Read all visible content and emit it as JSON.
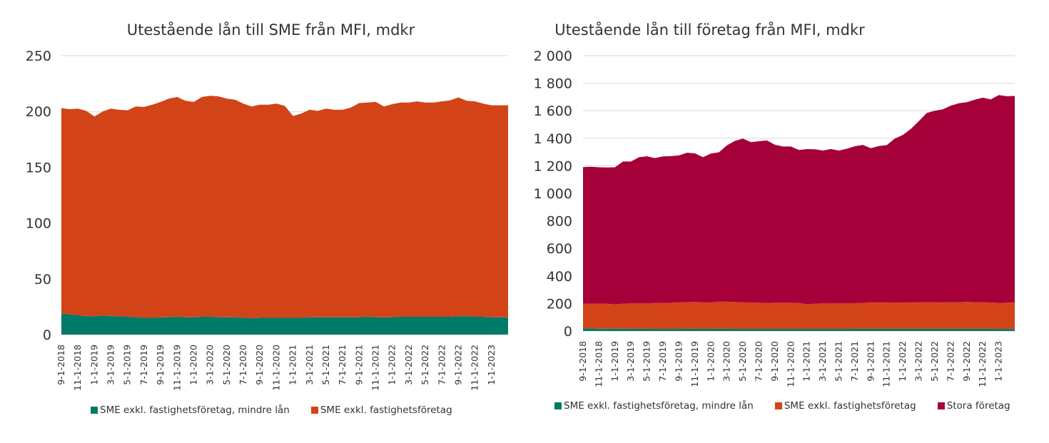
{
  "chart_data": [
    {
      "type": "area",
      "stacked": true,
      "title": "Utestående lån till SME från MFI, mdkr",
      "ylim": [
        0,
        250
      ],
      "yticks": [
        "0",
        "50",
        "100",
        "150",
        "200",
        "250"
      ],
      "ytick_values": [
        0,
        50,
        100,
        150,
        200,
        250
      ],
      "xtick_labels": [
        "9-1-2018",
        "11-1-2018",
        "1-1-2019",
        "3-1-2019",
        "5-1-2019",
        "7-1-2019",
        "9-1-2019",
        "11-1-2019",
        "1-1-2020",
        "3-1-2020",
        "5-1-2020",
        "7-1-2020",
        "9-1-2020",
        "11-1-2020",
        "1-1-2021",
        "3-1-2021",
        "5-1-2021",
        "7-1-2021",
        "9-1-2021",
        "11-1-2021",
        "1-1-2022",
        "3-1-2022",
        "5-1-2022",
        "7-1-2022",
        "9-1-2022",
        "11-1-2022",
        "1-1-2023"
      ],
      "grid": "horizontal",
      "legend_position": "bottom",
      "x": [
        "2018-09",
        "2018-10",
        "2018-11",
        "2018-12",
        "2019-01",
        "2019-02",
        "2019-03",
        "2019-04",
        "2019-05",
        "2019-06",
        "2019-07",
        "2019-08",
        "2019-09",
        "2019-10",
        "2019-11",
        "2019-12",
        "2020-01",
        "2020-02",
        "2020-03",
        "2020-04",
        "2020-05",
        "2020-06",
        "2020-07",
        "2020-08",
        "2020-09",
        "2020-10",
        "2020-11",
        "2020-12",
        "2021-01",
        "2021-02",
        "2021-03",
        "2021-04",
        "2021-05",
        "2021-06",
        "2021-07",
        "2021-08",
        "2021-09",
        "2021-10",
        "2021-11",
        "2021-12",
        "2022-01",
        "2022-02",
        "2022-03",
        "2022-04",
        "2022-05",
        "2022-06",
        "2022-07",
        "2022-08",
        "2022-09",
        "2022-10",
        "2022-11",
        "2022-12",
        "2023-01",
        "2023-02",
        "2023-03"
      ],
      "series": [
        {
          "name": "SME exkl. fastighetsföretag, mindre lån",
          "color": "#007a68",
          "values": [
            19,
            18,
            17.5,
            16.5,
            16.5,
            17,
            16.5,
            16.5,
            16,
            15.5,
            15,
            15,
            15.5,
            15.5,
            16,
            15.5,
            15.5,
            16,
            16,
            15.5,
            15.5,
            15.5,
            15,
            14.5,
            15,
            15,
            15,
            15,
            15,
            15,
            15.5,
            15.5,
            15.5,
            15.5,
            15.5,
            15.5,
            15.5,
            16,
            15.5,
            15.5,
            15.5,
            16,
            16,
            16,
            16,
            16,
            16,
            16,
            16.5,
            16.5,
            16,
            16,
            15.5,
            15.5,
            15.5
          ]
        },
        {
          "name": "SME exkl. fastighetsföretag",
          "color": "#d24418",
          "values": [
            184,
            184,
            185,
            184,
            179,
            183,
            186,
            185,
            185,
            189,
            189,
            191,
            193,
            196,
            197,
            194,
            193,
            197,
            198,
            198,
            196,
            195,
            192,
            190,
            191,
            191,
            192,
            190,
            181,
            183,
            186,
            185,
            187,
            186,
            186,
            188,
            192,
            192,
            193,
            189,
            191,
            192,
            192,
            193,
            192,
            192,
            193,
            194,
            196,
            193,
            193,
            191,
            190,
            190,
            190
          ]
        }
      ]
    },
    {
      "type": "area",
      "stacked": true,
      "title": "Utestående lån till företag från MFI, mdkr",
      "ylim": [
        0,
        2000
      ],
      "yticks": [
        "0",
        "200",
        "400",
        "600",
        "800",
        "1 000",
        "1 200",
        "1 400",
        "1 600",
        "1 800",
        "2 000"
      ],
      "ytick_values": [
        0,
        200,
        400,
        600,
        800,
        1000,
        1200,
        1400,
        1600,
        1800,
        2000
      ],
      "xtick_labels": [
        "9-1-2018",
        "11-1-2018",
        "1-1-2019",
        "3-1-2019",
        "5-1-2019",
        "7-1-2019",
        "9-1-2019",
        "11-1-2019",
        "1-1-2020",
        "3-1-2020",
        "5-1-2020",
        "7-1-2020",
        "9-1-2020",
        "11-1-2020",
        "1-1-2021",
        "3-1-2021",
        "5-1-2021",
        "7-1-2021",
        "9-1-2021",
        "11-1-2021",
        "1-1-2022",
        "3-1-2022",
        "5-1-2022",
        "7-1-2022",
        "9-1-2022",
        "11-1-2022",
        "1-1-2023"
      ],
      "grid": "horizontal",
      "legend_position": "bottom",
      "x": [
        "2018-09",
        "2018-10",
        "2018-11",
        "2018-12",
        "2019-01",
        "2019-02",
        "2019-03",
        "2019-04",
        "2019-05",
        "2019-06",
        "2019-07",
        "2019-08",
        "2019-09",
        "2019-10",
        "2019-11",
        "2019-12",
        "2020-01",
        "2020-02",
        "2020-03",
        "2020-04",
        "2020-05",
        "2020-06",
        "2020-07",
        "2020-08",
        "2020-09",
        "2020-10",
        "2020-11",
        "2020-12",
        "2021-01",
        "2021-02",
        "2021-03",
        "2021-04",
        "2021-05",
        "2021-06",
        "2021-07",
        "2021-08",
        "2021-09",
        "2021-10",
        "2021-11",
        "2021-12",
        "2022-01",
        "2022-02",
        "2022-03",
        "2022-04",
        "2022-05",
        "2022-06",
        "2022-07",
        "2022-08",
        "2022-09",
        "2022-10",
        "2022-11",
        "2022-12",
        "2023-01",
        "2023-02",
        "2023-03"
      ],
      "series": [
        {
          "name": "SME exkl. fastighetsföretag, mindre lån",
          "color": "#007a68",
          "values": [
            19,
            18,
            17,
            17,
            16,
            17,
            16,
            16,
            16,
            15,
            15,
            15,
            15,
            16,
            16,
            15,
            16,
            16,
            16,
            15,
            15,
            15,
            15,
            15,
            15,
            15,
            15,
            15,
            15,
            15,
            15,
            15,
            15,
            15,
            16,
            16,
            16,
            16,
            16,
            16,
            16,
            16,
            16,
            16,
            16,
            16,
            16,
            16,
            16,
            16,
            16,
            16,
            15,
            15,
            15
          ]
        },
        {
          "name": "SME exkl. fastighetsföretag",
          "color": "#d24418",
          "values": [
            181,
            181,
            182,
            181,
            178,
            182,
            185,
            184,
            185,
            188,
            188,
            190,
            192,
            194,
            195,
            192,
            192,
            197,
            197,
            196,
            193,
            192,
            190,
            189,
            190,
            190,
            190,
            189,
            181,
            183,
            186,
            185,
            186,
            186,
            186,
            188,
            192,
            192,
            192,
            189,
            190,
            192,
            192,
            193,
            192,
            192,
            193,
            193,
            196,
            193,
            193,
            191,
            189,
            190,
            192
          ]
        },
        {
          "name": "Stora företag",
          "color": "#a5003a",
          "values": [
            990,
            994,
            990,
            990,
            995,
            1032,
            1030,
            1062,
            1068,
            1053,
            1065,
            1065,
            1068,
            1085,
            1079,
            1055,
            1081,
            1085,
            1135,
            1170,
            1190,
            1165,
            1173,
            1180,
            1148,
            1135,
            1135,
            1111,
            1125,
            1122,
            1110,
            1122,
            1110,
            1123,
            1140,
            1148,
            1120,
            1135,
            1142,
            1193,
            1218,
            1260,
            1317,
            1375,
            1392,
            1402,
            1428,
            1445,
            1450,
            1471,
            1486,
            1475,
            1510,
            1500,
            1500
          ]
        }
      ]
    }
  ]
}
